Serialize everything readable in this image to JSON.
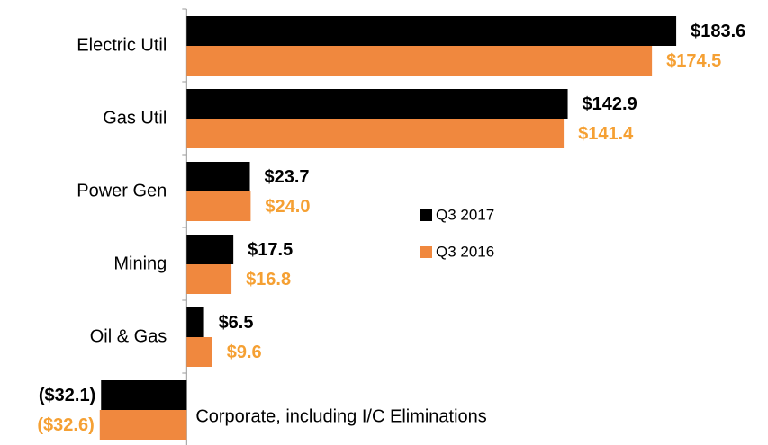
{
  "chart_data": {
    "type": "bar",
    "orientation": "horizontal",
    "categories": [
      "Electric Util",
      "Gas Util",
      "Power Gen",
      "Mining",
      "Oil & Gas",
      "Corporate, including I/C Eliminations"
    ],
    "series": [
      {
        "name": "Q3 2017",
        "color": "#000000",
        "values": [
          183.6,
          142.9,
          23.7,
          17.5,
          6.5,
          -32.1
        ],
        "value_labels": [
          "$183.6",
          "$142.9",
          "$23.7",
          "$17.5",
          "$6.5",
          "($32.1)"
        ]
      },
      {
        "name": "Q3 2016",
        "color": "#f0883e",
        "values": [
          174.5,
          141.4,
          24.0,
          16.8,
          9.6,
          -32.6
        ],
        "value_labels": [
          "$174.5",
          "$141.4",
          "$24.0",
          "$16.8",
          "$9.6",
          "($32.6)"
        ]
      }
    ],
    "xlim": [
      -70,
      217
    ]
  }
}
